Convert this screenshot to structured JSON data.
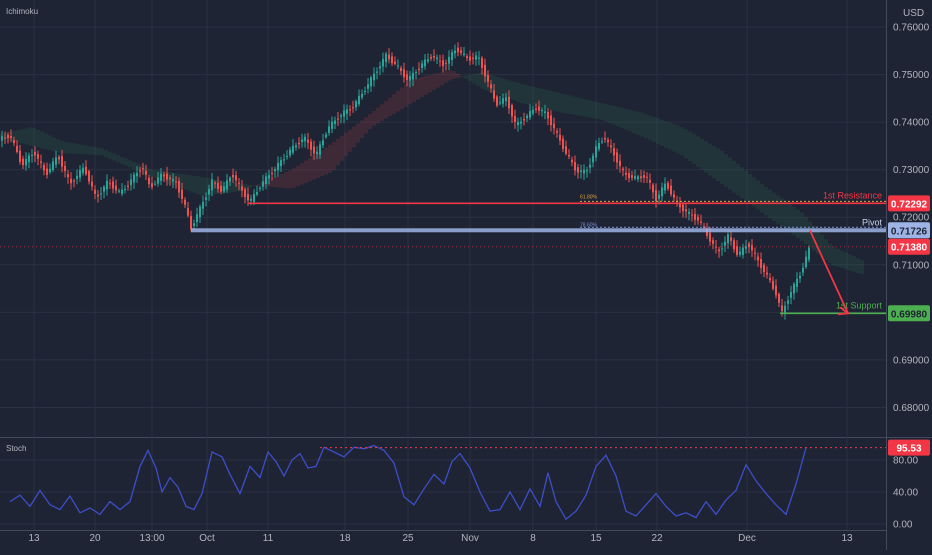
{
  "instrument": {
    "currency": "USD"
  },
  "panels": {
    "main_indicator": "Ichimoku",
    "oscillator": "Stoch"
  },
  "colors": {
    "background": "#1e2433",
    "grid": "#2a3143",
    "up_candle": "#26a69a",
    "down_candle": "#ef5350",
    "resistance": "#f23645",
    "pivot": "#9fb4e6",
    "support": "#4caf50",
    "current_price": "#f23645",
    "stoch_line": "#3d4ec9",
    "stoch_overbought": "#f23645"
  },
  "chart_data": [
    {
      "type": "candlestick",
      "title": "Ichimoku",
      "y_unit": "USD",
      "ylim": [
        0.674,
        0.764
      ],
      "y_ticks": [
        0.68,
        0.69,
        0.7,
        0.71,
        0.72,
        0.73,
        0.74,
        0.75,
        0.76
      ],
      "y_tick_labels": [
        "0.68000",
        "0.69000",
        "0.70000",
        "0.71000",
        "0.72000",
        "0.73000",
        "0.74000",
        "0.75000",
        "0.76000"
      ],
      "x_tick_labels": [
        "13",
        "20",
        "13:00",
        "Oct",
        "11",
        "18",
        "25",
        "Nov",
        "8",
        "15",
        "22",
        "Dec",
        "13"
      ],
      "grid": true,
      "price_path": [
        [
          0,
          0.7365
        ],
        [
          10,
          0.7372
        ],
        [
          22,
          0.731
        ],
        [
          34,
          0.7338
        ],
        [
          46,
          0.729
        ],
        [
          58,
          0.733
        ],
        [
          70,
          0.727
        ],
        [
          84,
          0.7305
        ],
        [
          96,
          0.724
        ],
        [
          108,
          0.7275
        ],
        [
          120,
          0.725
        ],
        [
          132,
          0.728
        ],
        [
          142,
          0.7308
        ],
        [
          150,
          0.7262
        ],
        [
          162,
          0.729
        ],
        [
          176,
          0.7272
        ],
        [
          184,
          0.723
        ],
        [
          191,
          0.7178
        ],
        [
          200,
          0.7218
        ],
        [
          212,
          0.7275
        ],
        [
          222,
          0.7255
        ],
        [
          232,
          0.7292
        ],
        [
          242,
          0.7255
        ],
        [
          250,
          0.7232
        ],
        [
          262,
          0.7272
        ],
        [
          276,
          0.7305
        ],
        [
          290,
          0.734
        ],
        [
          304,
          0.7368
        ],
        [
          316,
          0.733
        ],
        [
          328,
          0.7388
        ],
        [
          342,
          0.7418
        ],
        [
          352,
          0.743
        ],
        [
          362,
          0.746
        ],
        [
          374,
          0.75
        ],
        [
          386,
          0.754
        ],
        [
          396,
          0.752
        ],
        [
          408,
          0.7488
        ],
        [
          420,
          0.7518
        ],
        [
          432,
          0.754
        ],
        [
          444,
          0.752
        ],
        [
          456,
          0.7555
        ],
        [
          468,
          0.7532
        ],
        [
          478,
          0.7538
        ],
        [
          486,
          0.7495
        ],
        [
          496,
          0.7438
        ],
        [
          506,
          0.745
        ],
        [
          516,
          0.7392
        ],
        [
          526,
          0.7412
        ],
        [
          536,
          0.743
        ],
        [
          546,
          0.7418
        ],
        [
          556,
          0.7378
        ],
        [
          566,
          0.7335
        ],
        [
          576,
          0.7298
        ],
        [
          586,
          0.7295
        ],
        [
          596,
          0.7345
        ],
        [
          604,
          0.737
        ],
        [
          614,
          0.7332
        ],
        [
          624,
          0.729
        ],
        [
          636,
          0.7282
        ],
        [
          646,
          0.7288
        ],
        [
          656,
          0.7238
        ],
        [
          666,
          0.7272
        ],
        [
          676,
          0.723
        ],
        [
          688,
          0.7208
        ],
        [
          698,
          0.7195
        ],
        [
          708,
          0.716
        ],
        [
          718,
          0.7125
        ],
        [
          728,
          0.716
        ],
        [
          738,
          0.712
        ],
        [
          748,
          0.7145
        ],
        [
          756,
          0.7115
        ],
        [
          766,
          0.708
        ],
        [
          776,
          0.704
        ],
        [
          782,
          0.6998
        ],
        [
          790,
          0.704
        ],
        [
          800,
          0.708
        ],
        [
          810,
          0.7138
        ]
      ],
      "cloud": [
        [
          0,
          0.7375,
          0.7365
        ],
        [
          30,
          0.739,
          0.735
        ],
        [
          60,
          0.736,
          0.7335
        ],
        [
          100,
          0.7345,
          0.733
        ],
        [
          150,
          0.73,
          0.7285
        ],
        [
          200,
          0.7285,
          0.7245
        ],
        [
          240,
          0.727,
          0.7255
        ],
        [
          290,
          0.726,
          0.73
        ],
        [
          330,
          0.7295,
          0.7355
        ],
        [
          370,
          0.739,
          0.742
        ],
        [
          410,
          0.744,
          0.749
        ],
        [
          450,
          0.749,
          0.751
        ],
        [
          480,
          0.7505,
          0.747
        ],
        [
          520,
          0.748,
          0.744
        ],
        [
          560,
          0.746,
          0.742
        ],
        [
          600,
          0.744,
          0.7405
        ],
        [
          640,
          0.742,
          0.737
        ],
        [
          680,
          0.739,
          0.733
        ],
        [
          720,
          0.734,
          0.727
        ],
        [
          760,
          0.727,
          0.721
        ],
        [
          800,
          0.721,
          0.715
        ],
        [
          830,
          0.714,
          0.71
        ],
        [
          860,
          0.711,
          0.708
        ]
      ],
      "levels": [
        {
          "name": "1st Resistance",
          "value": 0.72292,
          "label": "0.72292",
          "fib_label": "61.80%"
        },
        {
          "name": "Pivot",
          "value": 0.71726,
          "label": "0.71726",
          "fib_label": "78.60%"
        },
        {
          "name": "1st Support",
          "value": 0.6998,
          "label": "0.69980"
        }
      ],
      "current_price": {
        "value": 0.7138,
        "label": "0.71380"
      },
      "projection": [
        [
          810,
          0.7172
        ],
        [
          848,
          0.6998
        ]
      ]
    },
    {
      "type": "line",
      "title": "Stoch",
      "ylim": [
        -5,
        105
      ],
      "y_ticks": [
        0,
        40,
        80
      ],
      "y_tick_labels": [
        "0.00",
        "40.00",
        "80.00"
      ],
      "current": {
        "value": 95.53,
        "label": "95.53"
      },
      "overbought_level": 95.53,
      "series": [
        [
          10,
          28
        ],
        [
          20,
          36
        ],
        [
          30,
          22
        ],
        [
          40,
          42
        ],
        [
          50,
          24
        ],
        [
          60,
          18
        ],
        [
          70,
          35
        ],
        [
          80,
          14
        ],
        [
          90,
          20
        ],
        [
          100,
          12
        ],
        [
          110,
          28
        ],
        [
          120,
          18
        ],
        [
          130,
          28
        ],
        [
          140,
          72
        ],
        [
          148,
          92
        ],
        [
          156,
          70
        ],
        [
          162,
          40
        ],
        [
          170,
          58
        ],
        [
          178,
          46
        ],
        [
          186,
          22
        ],
        [
          194,
          18
        ],
        [
          202,
          38
        ],
        [
          212,
          90
        ],
        [
          222,
          84
        ],
        [
          230,
          62
        ],
        [
          240,
          38
        ],
        [
          250,
          72
        ],
        [
          260,
          58
        ],
        [
          268,
          90
        ],
        [
          276,
          78
        ],
        [
          284,
          60
        ],
        [
          292,
          80
        ],
        [
          300,
          88
        ],
        [
          308,
          70
        ],
        [
          316,
          72
        ],
        [
          324,
          96
        ],
        [
          334,
          90
        ],
        [
          344,
          84
        ],
        [
          354,
          96
        ],
        [
          364,
          94
        ],
        [
          374,
          98
        ],
        [
          384,
          92
        ],
        [
          394,
          76
        ],
        [
          404,
          34
        ],
        [
          414,
          24
        ],
        [
          424,
          44
        ],
        [
          434,
          62
        ],
        [
          444,
          50
        ],
        [
          452,
          78
        ],
        [
          460,
          88
        ],
        [
          470,
          70
        ],
        [
          480,
          40
        ],
        [
          490,
          16
        ],
        [
          500,
          18
        ],
        [
          510,
          40
        ],
        [
          520,
          18
        ],
        [
          530,
          44
        ],
        [
          540,
          22
        ],
        [
          548,
          64
        ],
        [
          556,
          28
        ],
        [
          566,
          6
        ],
        [
          576,
          16
        ],
        [
          586,
          36
        ],
        [
          596,
          72
        ],
        [
          606,
          86
        ],
        [
          616,
          60
        ],
        [
          626,
          16
        ],
        [
          636,
          10
        ],
        [
          646,
          24
        ],
        [
          656,
          38
        ],
        [
          666,
          22
        ],
        [
          676,
          10
        ],
        [
          686,
          14
        ],
        [
          696,
          8
        ],
        [
          706,
          28
        ],
        [
          716,
          12
        ],
        [
          726,
          30
        ],
        [
          736,
          42
        ],
        [
          746,
          74
        ],
        [
          756,
          54
        ],
        [
          766,
          38
        ],
        [
          776,
          24
        ],
        [
          786,
          12
        ],
        [
          796,
          50
        ],
        [
          806,
          95.53
        ]
      ]
    }
  ]
}
